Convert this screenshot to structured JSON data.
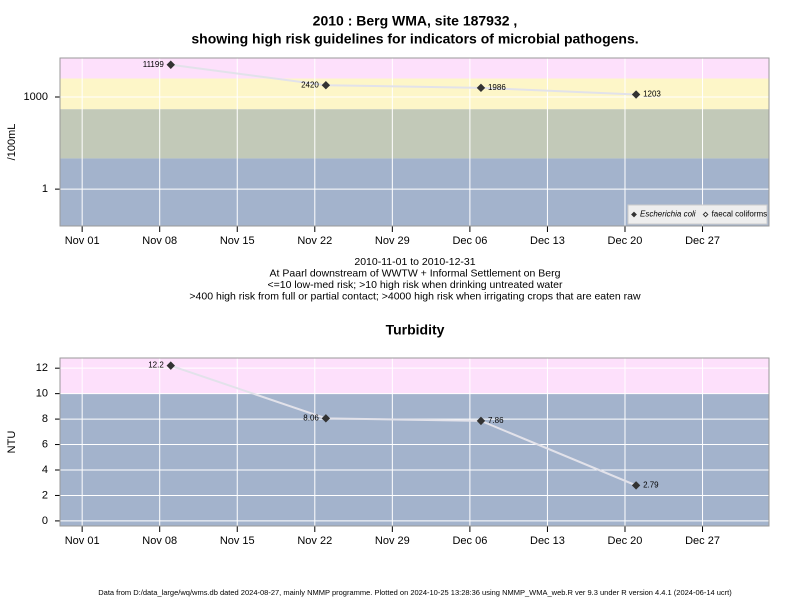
{
  "chart_data": [
    {
      "type": "line",
      "title": [
        "2010 : Berg WMA, site 187932 ,",
        "showing high risk guidelines for indicators of microbial pathogens."
      ],
      "ylabel": "/100mL",
      "log_scale": true,
      "grid": true,
      "legend": "bottom-right",
      "x": [
        "2010-11-09",
        "2010-11-23",
        "2010-12-07",
        "2010-12-21"
      ],
      "xlim": [
        "2010-10-30",
        "2011-01-02"
      ],
      "xticks": [
        {
          "value": "2010-11-01",
          "label": "Nov 01"
        },
        {
          "value": "2010-11-08",
          "label": "Nov 08"
        },
        {
          "value": "2010-11-15",
          "label": "Nov 15"
        },
        {
          "value": "2010-11-22",
          "label": "Nov 22"
        },
        {
          "value": "2010-11-29",
          "label": "Nov 29"
        },
        {
          "value": "2010-12-06",
          "label": "Dec 06"
        },
        {
          "value": "2010-12-13",
          "label": "Dec 13"
        },
        {
          "value": "2010-12-20",
          "label": "Dec 20"
        },
        {
          "value": "2010-12-27",
          "label": "Dec 27"
        }
      ],
      "ylim": [
        0.063,
        18600
      ],
      "yticks": [
        1,
        1000
      ],
      "bands": [
        {
          "min": 4000,
          "color": "#fde0fb"
        },
        {
          "min": 400,
          "max": 4000,
          "color": "#fdf6c8"
        },
        {
          "min": 10,
          "max": 400,
          "color": "#c2c9b8"
        },
        {
          "max": 10,
          "color": "#a3b3cc"
        }
      ],
      "series": [
        {
          "name": "Escherichia coli",
          "marker": "filled",
          "color": "#333333",
          "values": [
            11199,
            2420,
            1986,
            1203
          ]
        },
        {
          "name": "faecal coliforms",
          "marker": "open",
          "color": "#333333",
          "values": [
            null,
            null,
            null,
            null
          ]
        }
      ],
      "notes": [
        "2010-11-01 to 2010-12-31",
        "At Paarl downstream of WWTW + Informal Settlement on Berg",
        "<=10 low-med risk; >10 high risk when drinking untreated water",
        ">400 high risk from full or partial contact; >4000 high risk when irrigating crops that are eaten raw"
      ]
    },
    {
      "type": "line",
      "title": [
        "Turbidity"
      ],
      "ylabel": "NTU",
      "log_scale": false,
      "grid": true,
      "x": [
        "2010-11-09",
        "2010-11-23",
        "2010-12-07",
        "2010-12-21"
      ],
      "xlim": [
        "2010-10-30",
        "2011-01-02"
      ],
      "xticks": [
        {
          "value": "2010-11-01",
          "label": "Nov 01"
        },
        {
          "value": "2010-11-08",
          "label": "Nov 08"
        },
        {
          "value": "2010-11-15",
          "label": "Nov 15"
        },
        {
          "value": "2010-11-22",
          "label": "Nov 22"
        },
        {
          "value": "2010-11-29",
          "label": "Nov 29"
        },
        {
          "value": "2010-12-06",
          "label": "Dec 06"
        },
        {
          "value": "2010-12-13",
          "label": "Dec 13"
        },
        {
          "value": "2010-12-20",
          "label": "Dec 20"
        },
        {
          "value": "2010-12-27",
          "label": "Dec 27"
        }
      ],
      "ylim": [
        -0.4,
        12.8
      ],
      "yticks": [
        0,
        2,
        4,
        6,
        8,
        10,
        12
      ],
      "bands": [
        {
          "min": 10,
          "color": "#fde0fb"
        },
        {
          "max": 10,
          "color": "#a3b3cc"
        }
      ],
      "series": [
        {
          "name": "Turbidity",
          "marker": "filled",
          "color": "#333333",
          "values": [
            12.2,
            8.06,
            7.86,
            2.79
          ]
        }
      ]
    }
  ],
  "footer": "Data from D:/data_large/wq/wms.db dated 2024-08-27, mainly NMMP programme. Plotted on 2024-10-25 13:28:36 using NMMP_WMA_web.R ver 9.3 under R version 4.4.1 (2024-06-14 ucrt)"
}
